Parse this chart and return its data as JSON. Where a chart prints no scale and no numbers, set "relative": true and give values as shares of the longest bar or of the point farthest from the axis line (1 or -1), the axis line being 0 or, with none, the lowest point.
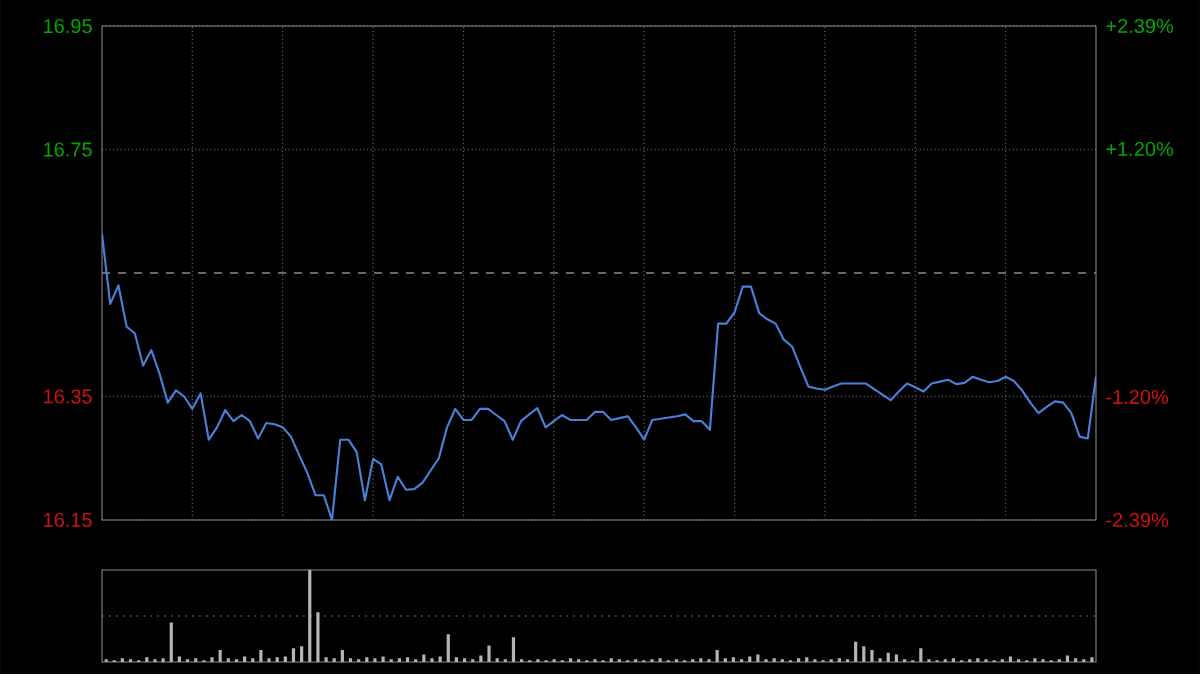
{
  "chart_data": [
    {
      "type": "line",
      "ylim": [
        16.15,
        16.95
      ],
      "y2lim": [
        -2.39,
        2.39
      ],
      "categories": [
        null,
        null,
        null,
        null,
        null,
        null,
        null,
        null,
        null,
        null,
        null,
        null,
        null,
        null,
        null,
        null,
        null,
        null,
        null,
        null,
        null,
        null,
        null,
        null,
        null,
        null,
        null,
        null,
        null,
        null,
        null,
        null,
        null,
        null,
        null,
        null,
        null,
        null,
        null,
        null,
        null,
        null,
        null,
        null,
        null,
        null,
        null,
        null,
        null,
        null,
        null,
        null,
        null,
        null,
        null,
        null,
        null,
        null,
        null,
        null,
        null,
        null,
        null,
        null,
        null,
        null,
        null,
        null,
        null,
        null,
        null,
        null,
        null,
        null,
        null,
        null,
        null,
        null,
        null,
        null,
        null,
        null,
        null,
        null,
        null,
        null,
        null,
        null,
        null,
        null,
        null,
        null,
        null,
        null,
        null,
        null,
        null,
        null,
        null,
        null,
        null,
        null,
        null,
        null,
        null,
        null,
        null,
        null,
        null,
        null,
        null,
        null,
        null,
        null,
        null,
        null,
        null,
        null,
        null,
        null,
        null,
        null
      ],
      "yticks": [
        16.15,
        16.35,
        16.75,
        16.95
      ],
      "y2ticks": [
        {
          "value": -2.39,
          "label": "-2.39%"
        },
        {
          "value": -1.2,
          "label": "-1.20%"
        },
        {
          "value": 1.2,
          "label": "+1.20%"
        },
        {
          "value": 2.39,
          "label": "+2.39%"
        }
      ],
      "tick_labels": "y",
      "grid": true,
      "ref_lines": [
        {
          "axis": "y",
          "value": 16.55,
          "color": "#8a8a8a",
          "line_style": "dashed"
        }
      ],
      "series": [
        {
          "color": "#4a80d8",
          "values": [
            16.613,
            16.5,
            16.53,
            16.463,
            16.452,
            16.4,
            16.425,
            16.387,
            16.34,
            16.36,
            16.35,
            16.33,
            16.355,
            16.28,
            16.3,
            16.328,
            16.31,
            16.32,
            16.31,
            16.282,
            16.307,
            16.305,
            16.3,
            16.285,
            16.255,
            16.226,
            16.19,
            16.19,
            16.15,
            16.28,
            16.28,
            16.26,
            16.182,
            16.249,
            16.24,
            16.182,
            16.22,
            16.199,
            16.2,
            16.21,
            16.23,
            16.25,
            16.3,
            16.33,
            16.312,
            16.312,
            16.33,
            16.33,
            16.32,
            16.31,
            16.28,
            16.31,
            16.321,
            16.331,
            16.3,
            16.31,
            16.32,
            16.312,
            16.312,
            16.312,
            16.325,
            16.325,
            16.312,
            16.315,
            16.318,
            16.3,
            16.28,
            16.312,
            16.314,
            16.316,
            16.318,
            16.321,
            16.31,
            16.31,
            16.296,
            16.468,
            16.468,
            16.486,
            16.528,
            16.528,
            16.485,
            16.475,
            16.468,
            16.442,
            16.431,
            16.398,
            16.366,
            16.363,
            16.361,
            16.366,
            16.371,
            16.371,
            16.371,
            16.371,
            16.362,
            16.353,
            16.344,
            16.358,
            16.371,
            16.365,
            16.358,
            16.371,
            16.374,
            16.377,
            16.37,
            16.372,
            16.382,
            16.377,
            16.373,
            16.375,
            16.382,
            16.375,
            16.36,
            16.34,
            16.323,
            16.333,
            16.342,
            16.34,
            16.323,
            16.285,
            16.282,
            16.382
          ]
        }
      ]
    },
    {
      "type": "bar",
      "relative": true,
      "tick_labels": false,
      "ref_lines": [
        {
          "axis": "y",
          "value": 0.5,
          "color": "#5a5a5a",
          "line_style": "dotted"
        }
      ],
      "categories": [
        null,
        null,
        null,
        null,
        null,
        null,
        null,
        null,
        null,
        null,
        null,
        null,
        null,
        null,
        null,
        null,
        null,
        null,
        null,
        null,
        null,
        null,
        null,
        null,
        null,
        null,
        null,
        null,
        null,
        null,
        null,
        null,
        null,
        null,
        null,
        null,
        null,
        null,
        null,
        null,
        null,
        null,
        null,
        null,
        null,
        null,
        null,
        null,
        null,
        null,
        null,
        null,
        null,
        null,
        null,
        null,
        null,
        null,
        null,
        null,
        null,
        null,
        null,
        null,
        null,
        null,
        null,
        null,
        null,
        null,
        null,
        null,
        null,
        null,
        null,
        null,
        null,
        null,
        null,
        null,
        null,
        null,
        null,
        null,
        null,
        null,
        null,
        null,
        null,
        null,
        null,
        null,
        null,
        null,
        null,
        null,
        null,
        null,
        null,
        null,
        null,
        null,
        null,
        null,
        null,
        null,
        null,
        null,
        null,
        null,
        null,
        null,
        null,
        null,
        null,
        null,
        null,
        null,
        null,
        null,
        null,
        null
      ],
      "color": "#b4b4b4",
      "values": [
        0.03,
        0.02,
        0.04,
        0.03,
        0.02,
        0.05,
        0.03,
        0.04,
        0.43,
        0.06,
        0.03,
        0.04,
        0.02,
        0.05,
        0.13,
        0.04,
        0.03,
        0.06,
        0.04,
        0.13,
        0.04,
        0.05,
        0.06,
        0.15,
        0.17,
        1.0,
        0.54,
        0.05,
        0.04,
        0.13,
        0.04,
        0.03,
        0.05,
        0.04,
        0.06,
        0.03,
        0.04,
        0.05,
        0.03,
        0.08,
        0.04,
        0.06,
        0.3,
        0.05,
        0.04,
        0.03,
        0.07,
        0.18,
        0.04,
        0.03,
        0.27,
        0.03,
        0.02,
        0.03,
        0.02,
        0.03,
        0.02,
        0.04,
        0.03,
        0.02,
        0.03,
        0.02,
        0.04,
        0.03,
        0.02,
        0.03,
        0.02,
        0.03,
        0.04,
        0.02,
        0.03,
        0.02,
        0.03,
        0.04,
        0.03,
        0.13,
        0.04,
        0.05,
        0.03,
        0.06,
        0.08,
        0.03,
        0.04,
        0.03,
        0.02,
        0.04,
        0.05,
        0.03,
        0.02,
        0.03,
        0.04,
        0.03,
        0.22,
        0.17,
        0.13,
        0.04,
        0.1,
        0.08,
        0.03,
        0.02,
        0.15,
        0.03,
        0.02,
        0.03,
        0.04,
        0.02,
        0.03,
        0.04,
        0.03,
        0.02,
        0.03,
        0.06,
        0.03,
        0.02,
        0.04,
        0.03,
        0.02,
        0.03,
        0.07,
        0.04,
        0.03,
        0.05
      ]
    }
  ]
}
